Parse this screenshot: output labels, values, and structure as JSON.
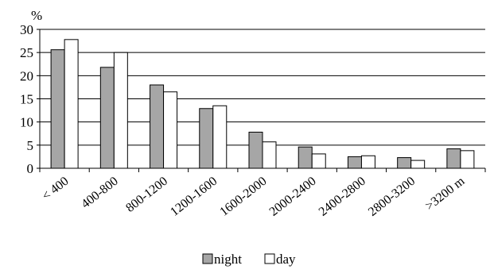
{
  "chart_data": {
    "type": "bar",
    "ylabel": "%",
    "ylim": [
      0,
      30
    ],
    "yticks": [
      0,
      5,
      10,
      15,
      20,
      25,
      30
    ],
    "grid": true,
    "legend_position": "bottom-center",
    "categories": [
      "< 400",
      "400-800",
      "800-1200",
      "1200-1600",
      "1600-2000",
      "2000-2400",
      "2400-2800",
      "2800-3200",
      ">3200 m"
    ],
    "series": [
      {
        "name": "night",
        "color": "#a6a6a6",
        "values": [
          25.6,
          21.8,
          18.0,
          12.9,
          7.8,
          4.6,
          2.5,
          2.3,
          4.2
        ]
      },
      {
        "name": "day",
        "color": "#ffffff",
        "values": [
          27.8,
          25.0,
          16.5,
          13.5,
          5.7,
          3.1,
          2.7,
          1.7,
          3.8
        ]
      }
    ]
  }
}
